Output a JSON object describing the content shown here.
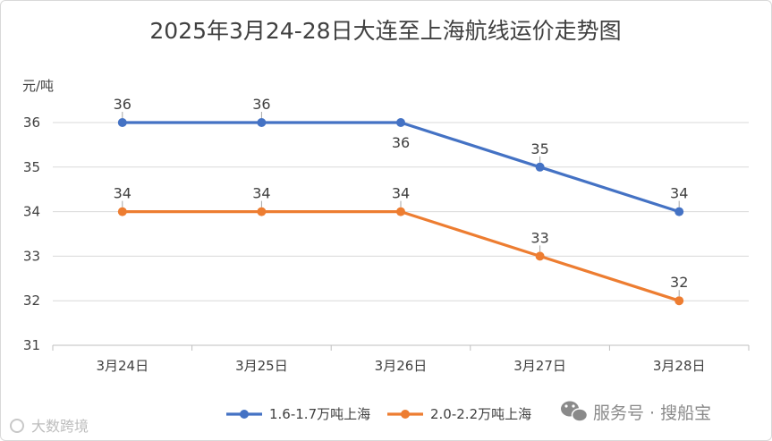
{
  "chart_data": {
    "type": "line",
    "title": "2025年3月24-28日大连至上海航线运价走势图",
    "ylabel": "元/吨",
    "xlabel": "",
    "categories": [
      "3月24日",
      "3月25日",
      "3月26日",
      "3月27日",
      "3月28日"
    ],
    "ylim": [
      31,
      36
    ],
    "yticks": [
      31,
      32,
      33,
      34,
      35,
      36
    ],
    "grid": true,
    "legend_position": "bottom",
    "series": [
      {
        "name": "1.6-1.7万吨上海",
        "values": [
          36,
          36,
          36,
          35,
          34
        ],
        "color": "#4472C4"
      },
      {
        "name": "2.0-2.2万吨上海",
        "values": [
          34,
          34,
          34,
          33,
          32
        ],
        "color": "#ED7D31"
      }
    ]
  },
  "watermarks": {
    "wechat": "服务号 · 搜船宝",
    "brand": "大数跨境",
    "wechat_icon": "wechat-icon"
  }
}
